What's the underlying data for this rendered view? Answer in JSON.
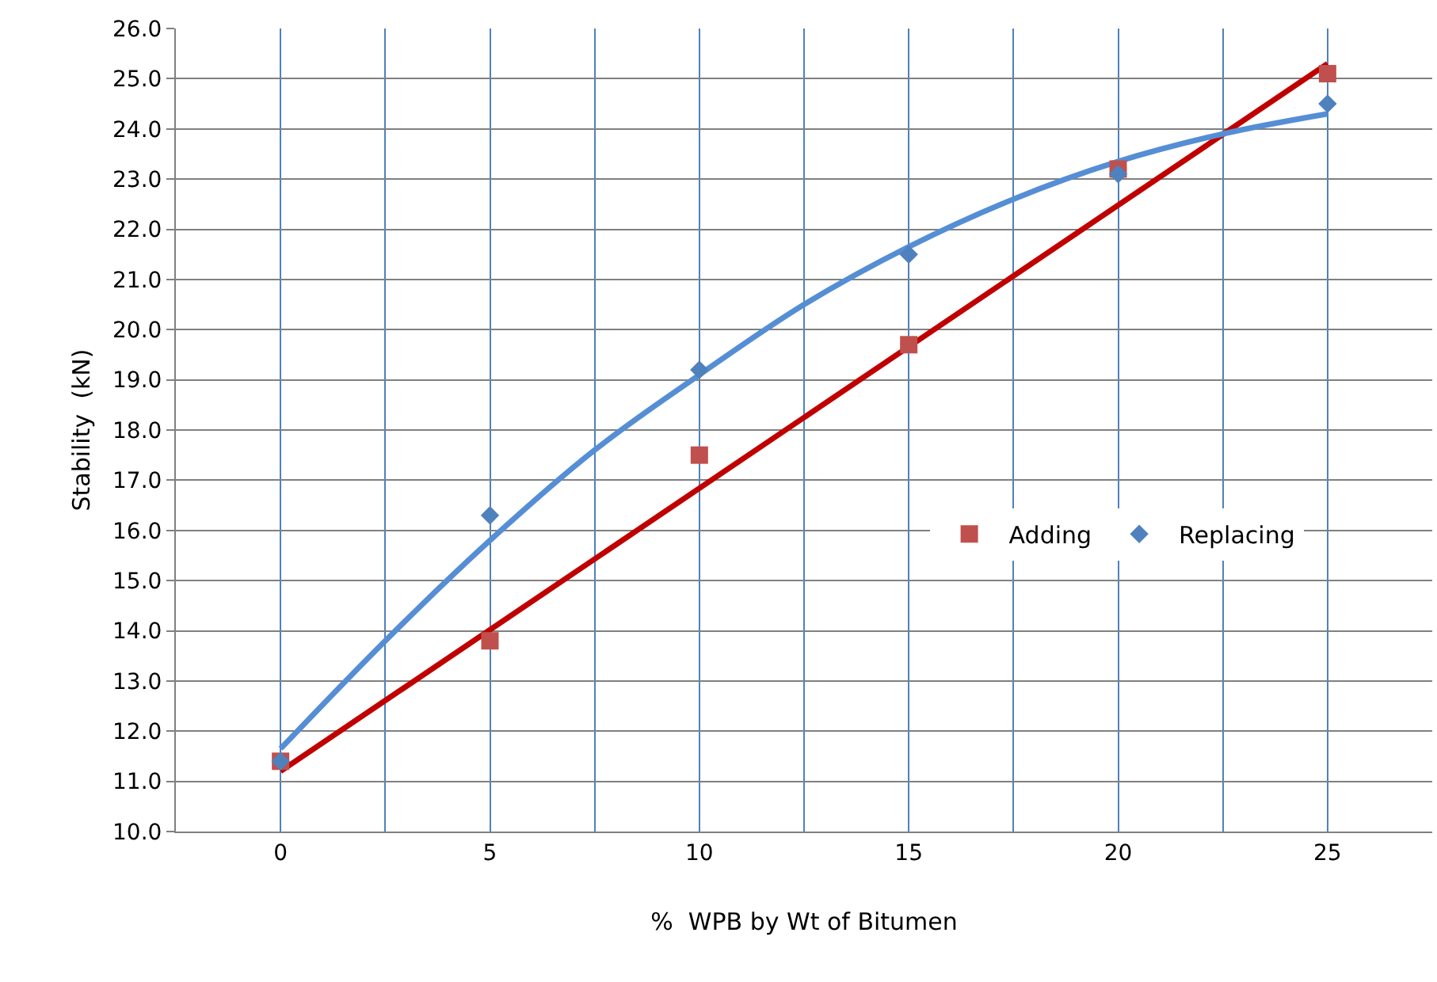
{
  "chart_data": {
    "type": "scatter",
    "xlabel": "%  WPB by Wt of Bitumen",
    "ylabel": "Stability  (kN)",
    "xlim": [
      -2.5,
      27.5
    ],
    "xticks": [
      {
        "value": -2.5,
        "label": null
      },
      0,
      {
        "value": 2.5,
        "label": null
      },
      5,
      {
        "value": 7.5,
        "label": null
      },
      10,
      {
        "value": 12.5,
        "label": null
      },
      15,
      {
        "value": 17.5,
        "label": null
      },
      20,
      {
        "value": 22.5,
        "label": null
      },
      25,
      {
        "value": 27.5,
        "label": null
      }
    ],
    "ylim": [
      10,
      26
    ],
    "yticks": [
      {
        "value": 10,
        "label": "10.0"
      },
      {
        "value": 11,
        "label": "11.0"
      },
      {
        "value": 12,
        "label": "12.0"
      },
      {
        "value": 13,
        "label": "13.0"
      },
      {
        "value": 14,
        "label": "14.0"
      },
      {
        "value": 15,
        "label": "15.0"
      },
      {
        "value": 16,
        "label": "16.0"
      },
      {
        "value": 17,
        "label": "17.0"
      },
      {
        "value": 18,
        "label": "18.0"
      },
      {
        "value": 19,
        "label": "19.0"
      },
      {
        "value": 20,
        "label": "20.0"
      },
      {
        "value": 21,
        "label": "21.0"
      },
      {
        "value": 22,
        "label": "22.0"
      },
      {
        "value": 23,
        "label": "23.0"
      },
      {
        "value": 24,
        "label": "24.0"
      },
      {
        "value": 25,
        "label": "25.0"
      },
      {
        "value": 26,
        "label": "26.0"
      }
    ],
    "grid": true,
    "legend": "right",
    "series": [
      {
        "type": "line",
        "color": "#c00000",
        "marker": "none",
        "line_style": "solid",
        "x": [
          0,
          25
        ],
        "values": [
          11.2,
          25.3
        ]
      },
      {
        "type": "line",
        "color": "#558ed5",
        "marker": "none",
        "line_style": "solid",
        "x": [
          0,
          2.5,
          5,
          7.5,
          10,
          12.5,
          15,
          17.5,
          20,
          22.5,
          25
        ],
        "values": [
          11.65,
          13.8,
          15.8,
          17.6,
          19.1,
          20.5,
          21.65,
          22.6,
          23.35,
          23.9,
          24.3
        ]
      },
      {
        "name": "Adding",
        "color": "#c0504d",
        "marker": "square",
        "x": [
          0,
          5,
          10,
          15,
          20,
          25
        ],
        "values": [
          11.4,
          13.8,
          17.5,
          19.7,
          23.2,
          25.1
        ]
      },
      {
        "name": "Replacing",
        "color": "#4f81bd",
        "marker": "diamond",
        "x": [
          0,
          5,
          10,
          15,
          20,
          25
        ],
        "values": [
          11.4,
          16.3,
          19.2,
          21.5,
          23.1,
          24.5
        ]
      }
    ]
  }
}
